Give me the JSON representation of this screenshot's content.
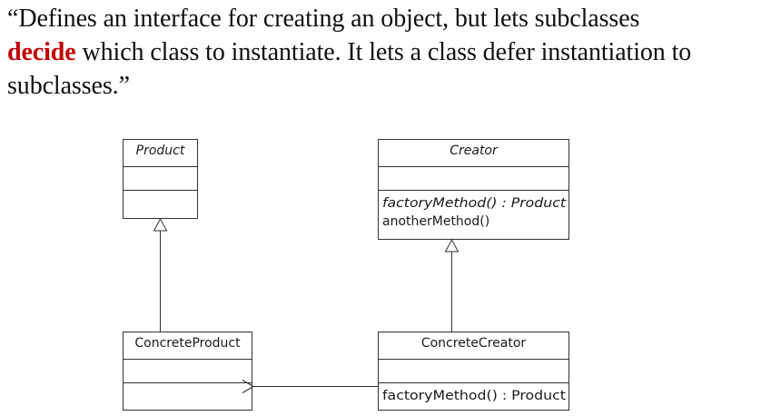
{
  "quote": {
    "open_mark": "“",
    "part1": "Defines an interface for creating an object, but lets subclasses",
    "emphasis": "decide",
    "part2": " which class to instantiate. It lets a class defer instantiation to subclasses.",
    "close_mark": "”",
    "emphasis_color": "#c00000"
  },
  "classes": {
    "product": {
      "name": "Product"
    },
    "creator": {
      "name": "Creator",
      "methods": [
        "factoryMethod() : Product",
        "anotherMethod()"
      ]
    },
    "concrete_product": {
      "name": "ConcreteProduct"
    },
    "concrete_creator": {
      "name": "ConcreteCreator",
      "methods": [
        "factoryMethod() : Product"
      ]
    }
  },
  "relationships": [
    {
      "type": "generalization",
      "from": "ConcreteProduct",
      "to": "Product"
    },
    {
      "type": "generalization",
      "from": "ConcreteCreator",
      "to": "Creator"
    },
    {
      "type": "dependency",
      "from": "ConcreteCreator",
      "to": "ConcreteProduct"
    }
  ]
}
